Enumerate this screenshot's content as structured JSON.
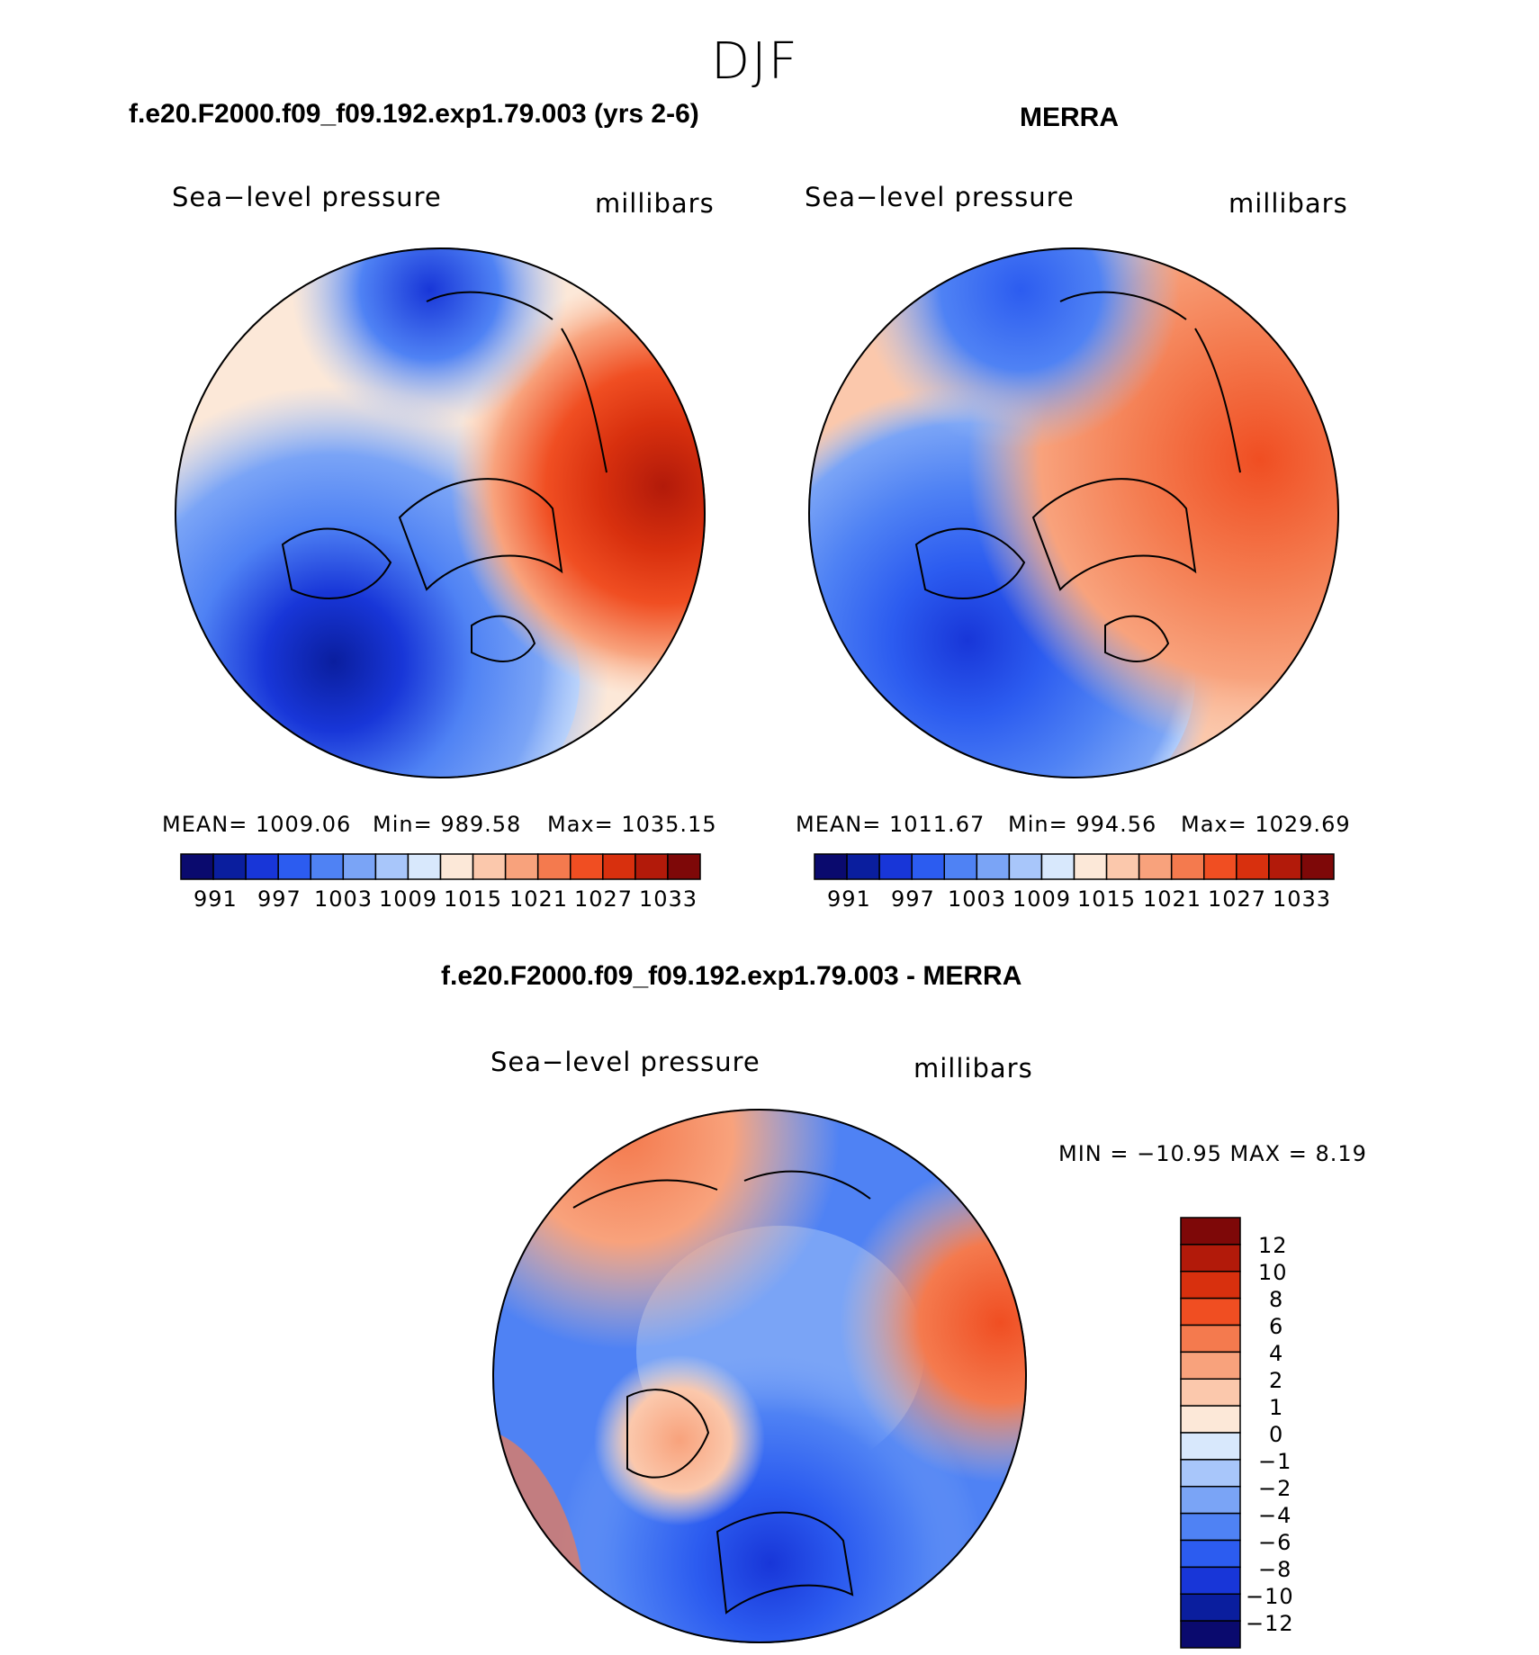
{
  "season": "DJF",
  "palette": {
    "pressure": [
      "#0a0a6e",
      "#0a1e9e",
      "#1836d8",
      "#2c5cf0",
      "#4f82f4",
      "#7aa4f6",
      "#a8c6fa",
      "#d8e8fc",
      "#fce8d8",
      "#fbc8ac",
      "#f8a27c",
      "#f47a4e",
      "#f04e22",
      "#d8300e",
      "#b21a0a",
      "#7e0808"
    ],
    "diff": [
      "#7e0808",
      "#b21a0a",
      "#d8300e",
      "#f04e22",
      "#f47a4e",
      "#f8a27c",
      "#fbc8ac",
      "#fce8d8",
      "#d8e8fc",
      "#a8c6fa",
      "#7aa4f6",
      "#4f82f4",
      "#2c5cf0",
      "#1836d8",
      "#0a1e9e",
      "#0a0a6e"
    ]
  },
  "panels": [
    {
      "title": "f.e20.F2000.f09_f09.192.exp1.79.003 (yrs 2-6)",
      "variable": "Sea−level pressure",
      "units": "millibars",
      "mean": "MEAN=  1009.06",
      "min": "Min=  989.58",
      "max": "Max=  1035.15",
      "colorbar_ticks": [
        "991",
        "997",
        "1003",
        "1009",
        "1015",
        "1021",
        "1027",
        "1033"
      ]
    },
    {
      "title": "MERRA",
      "variable": "Sea−level pressure",
      "units": "millibars",
      "mean": "MEAN=  1011.67",
      "min": "Min=  994.56",
      "max": "Max=  1029.69",
      "colorbar_ticks": [
        "991",
        "997",
        "1003",
        "1009",
        "1015",
        "1021",
        "1027",
        "1033"
      ]
    }
  ],
  "difference": {
    "title": "f.e20.F2000.f09_f09.192.exp1.79.003 - MERRA",
    "variable": "Sea−level pressure",
    "units": "millibars",
    "minmax": "MIN  =  −10.95  MAX  =      8.19",
    "colorbar_ticks": [
      "12",
      "10",
      "8",
      "6",
      "4",
      "2",
      "1",
      "0",
      "−1",
      "−2",
      "−4",
      "−6",
      "−8",
      "−10",
      "−12"
    ]
  }
}
